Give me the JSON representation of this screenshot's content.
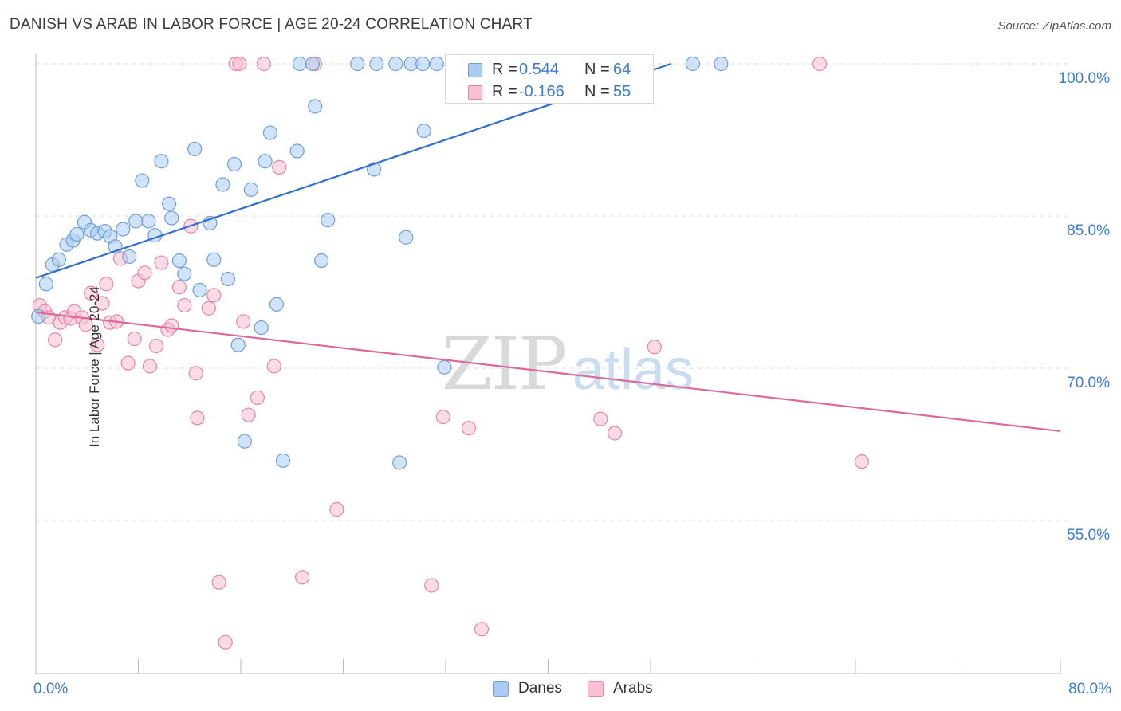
{
  "title": "DANISH VS ARAB IN LABOR FORCE | AGE 20-24 CORRELATION CHART",
  "source": "Source: ZipAtlas.com",
  "watermark": {
    "zip": "ZIP",
    "atlas": "atlas"
  },
  "legend_top": {
    "rows": [
      {
        "r_label": "R =",
        "r_value": "0.544",
        "n_label": "N =",
        "n_value": "64"
      },
      {
        "r_label": "R =",
        "r_value": "-0.166",
        "n_label": "N =",
        "n_value": "55"
      }
    ]
  },
  "legend_bottom": {
    "items": [
      {
        "label": "Danes"
      },
      {
        "label": "Arabs"
      }
    ]
  },
  "colors": {
    "danes_fill": "#aaccf2",
    "danes_stroke": "#6f9fd9",
    "danes_line": "#2d6fcf",
    "arabs_fill": "#f8c0d2",
    "arabs_stroke": "#e6869f",
    "arabs_line": "#e0679a",
    "axis_text": "#3f7bd0",
    "grid": "#dddddd"
  },
  "chart_data": {
    "type": "scatter",
    "title": "DANISH VS ARAB IN LABOR FORCE | AGE 20-24 CORRELATION CHART",
    "xlabel": "",
    "ylabel": "In Labor Force | Age 20-24",
    "xlim": [
      0,
      80
    ],
    "ylim": [
      40,
      101
    ],
    "x_tick_labels": [
      "0.0%",
      "80.0%"
    ],
    "y_ticks": [
      55,
      70,
      85,
      100
    ],
    "y_tick_labels": [
      "55.0%",
      "70.0%",
      "85.0%",
      "100.0%"
    ],
    "grid": true,
    "legend_position": "bottom",
    "series": [
      {
        "name": "Danes",
        "r": 0.544,
        "n": 64,
        "trend": {
          "x": [
            0,
            49.6
          ],
          "y": [
            78.9,
            100
          ]
        },
        "points": [
          [
            0.2,
            75.1
          ],
          [
            0.8,
            78.3
          ],
          [
            1.3,
            80.2
          ],
          [
            1.8,
            80.7
          ],
          [
            2.4,
            82.2
          ],
          [
            2.9,
            82.6
          ],
          [
            3.2,
            83.2
          ],
          [
            3.8,
            84.4
          ],
          [
            4.3,
            83.6
          ],
          [
            4.8,
            83.3
          ],
          [
            5.4,
            83.5
          ],
          [
            5.8,
            83.0
          ],
          [
            6.2,
            82.0
          ],
          [
            6.8,
            83.7
          ],
          [
            7.3,
            81.0
          ],
          [
            7.8,
            84.5
          ],
          [
            8.3,
            88.5
          ],
          [
            8.8,
            84.5
          ],
          [
            9.3,
            83.1
          ],
          [
            9.8,
            90.4
          ],
          [
            10.4,
            86.2
          ],
          [
            10.6,
            84.8
          ],
          [
            11.2,
            80.6
          ],
          [
            11.6,
            79.3
          ],
          [
            12.4,
            91.6
          ],
          [
            12.8,
            77.7
          ],
          [
            13.6,
            84.3
          ],
          [
            13.9,
            80.7
          ],
          [
            14.6,
            88.1
          ],
          [
            15.0,
            78.8
          ],
          [
            15.5,
            90.1
          ],
          [
            15.8,
            72.3
          ],
          [
            16.3,
            62.8
          ],
          [
            16.8,
            87.6
          ],
          [
            17.6,
            74.0
          ],
          [
            17.9,
            90.4
          ],
          [
            18.3,
            93.2
          ],
          [
            18.8,
            76.3
          ],
          [
            19.3,
            60.9
          ],
          [
            20.4,
            91.4
          ],
          [
            20.6,
            100.0
          ],
          [
            21.6,
            100.0
          ],
          [
            21.8,
            95.8
          ],
          [
            22.3,
            80.6
          ],
          [
            22.8,
            84.6
          ],
          [
            25.1,
            100.0
          ],
          [
            26.4,
            89.6
          ],
          [
            26.6,
            100.0
          ],
          [
            28.1,
            100.0
          ],
          [
            28.4,
            60.7
          ],
          [
            28.9,
            82.9
          ],
          [
            29.3,
            100.0
          ],
          [
            30.2,
            100.0
          ],
          [
            30.3,
            93.4
          ],
          [
            31.3,
            100.0
          ],
          [
            31.9,
            70.1
          ],
          [
            34.6,
            100.0
          ],
          [
            37.6,
            100.0
          ],
          [
            38.1,
            100.0
          ],
          [
            39.6,
            100.0
          ],
          [
            41.6,
            100.0
          ],
          [
            44.1,
            100.0
          ],
          [
            51.3,
            100.0
          ],
          [
            53.5,
            100.0
          ]
        ]
      },
      {
        "name": "Arabs",
        "r": -0.166,
        "n": 55,
        "trend": {
          "x": [
            0,
            80
          ],
          "y": [
            75.5,
            63.8
          ]
        },
        "points": [
          [
            0.3,
            76.2
          ],
          [
            0.7,
            75.6
          ],
          [
            1.0,
            75.0
          ],
          [
            1.5,
            72.8
          ],
          [
            1.9,
            74.5
          ],
          [
            2.3,
            75.0
          ],
          [
            2.7,
            74.9
          ],
          [
            3.0,
            75.6
          ],
          [
            3.6,
            75.0
          ],
          [
            3.9,
            74.3
          ],
          [
            4.3,
            77.4
          ],
          [
            4.8,
            72.3
          ],
          [
            5.2,
            76.4
          ],
          [
            5.5,
            78.3
          ],
          [
            5.8,
            74.5
          ],
          [
            6.3,
            74.6
          ],
          [
            6.6,
            80.8
          ],
          [
            7.2,
            70.5
          ],
          [
            7.7,
            72.9
          ],
          [
            8.0,
            78.6
          ],
          [
            8.5,
            79.4
          ],
          [
            8.9,
            70.2
          ],
          [
            9.4,
            72.2
          ],
          [
            9.8,
            80.4
          ],
          [
            10.3,
            73.8
          ],
          [
            10.6,
            74.2
          ],
          [
            11.2,
            78.0
          ],
          [
            11.6,
            76.2
          ],
          [
            12.1,
            84.0
          ],
          [
            12.5,
            69.5
          ],
          [
            12.6,
            65.1
          ],
          [
            13.5,
            75.9
          ],
          [
            13.9,
            77.2
          ],
          [
            14.3,
            48.9
          ],
          [
            14.8,
            43.0
          ],
          [
            15.6,
            100.0
          ],
          [
            15.9,
            100.0
          ],
          [
            16.2,
            74.6
          ],
          [
            16.6,
            65.4
          ],
          [
            17.3,
            67.1
          ],
          [
            17.8,
            100.0
          ],
          [
            18.6,
            70.2
          ],
          [
            19.0,
            89.8
          ],
          [
            20.8,
            49.4
          ],
          [
            21.8,
            100.0
          ],
          [
            23.5,
            56.1
          ],
          [
            30.9,
            48.6
          ],
          [
            31.8,
            65.2
          ],
          [
            33.8,
            64.1
          ],
          [
            34.8,
            44.3
          ],
          [
            44.1,
            65.0
          ],
          [
            45.2,
            63.6
          ],
          [
            48.3,
            72.1
          ],
          [
            61.2,
            100.0
          ],
          [
            64.5,
            60.8
          ]
        ]
      }
    ]
  }
}
